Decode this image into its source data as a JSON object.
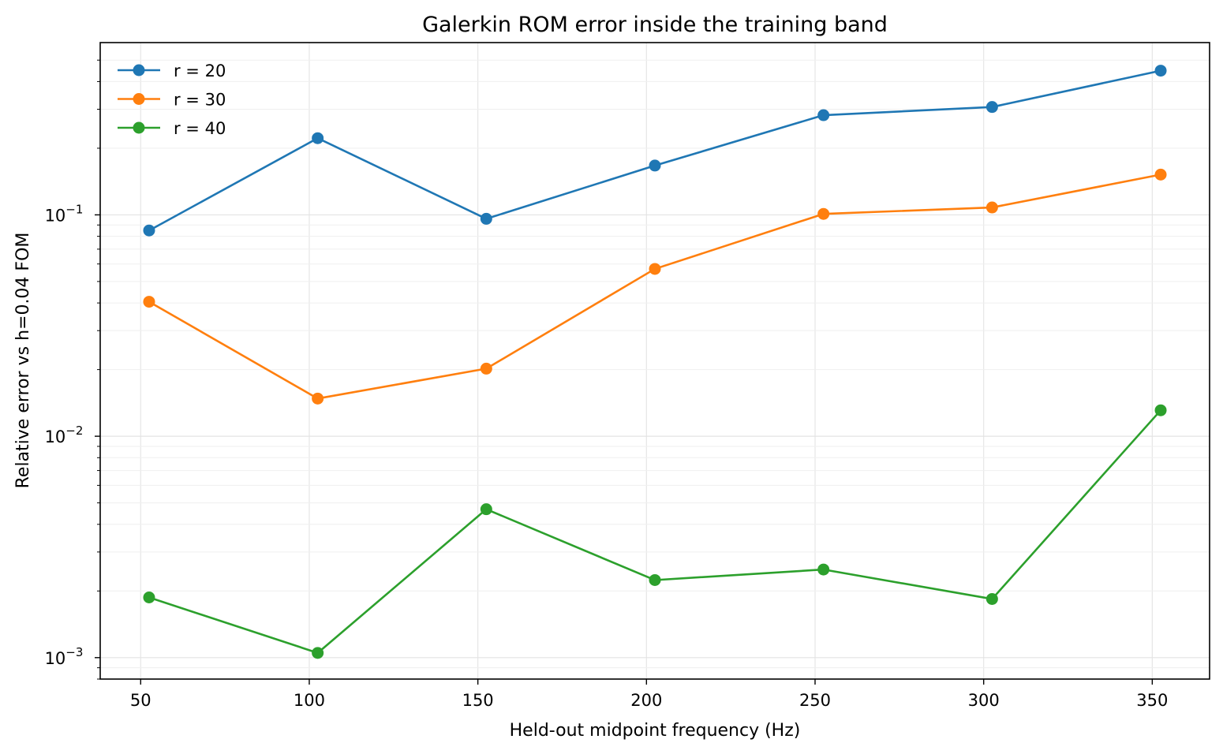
{
  "chart_data": {
    "type": "line",
    "title": "Galerkin ROM error inside the training band",
    "xlabel": "Held-out midpoint frequency (Hz)",
    "ylabel": "Relative error vs h=0.04 FOM",
    "x": [
      52.5,
      102.5,
      152.5,
      202.5,
      252.5,
      302.5,
      352.5
    ],
    "xlim": [
      38,
      367
    ],
    "ylim": [
      0.0008,
      0.6
    ],
    "yscale": "log",
    "x_ticks": [
      50,
      100,
      150,
      200,
      250,
      300,
      350
    ],
    "x_tick_labels": [
      "50",
      "100",
      "150",
      "200",
      "250",
      "300",
      "350"
    ],
    "y_ticks": [
      {
        "value": 0.1,
        "base": "10",
        "exp": "−1"
      },
      {
        "value": 0.01,
        "base": "10",
        "exp": "−2"
      },
      {
        "value": 0.001,
        "base": "10",
        "exp": "−3"
      }
    ],
    "grid": true,
    "legend_position": "top-left",
    "series": [
      {
        "name": "r = 20",
        "color": "#1f77b4",
        "values": [
          0.085,
          0.222,
          0.096,
          0.167,
          0.282,
          0.307,
          0.448
        ]
      },
      {
        "name": "r = 30",
        "color": "#ff7f0e",
        "values": [
          0.0405,
          0.0148,
          0.0202,
          0.057,
          0.101,
          0.108,
          0.152
        ]
      },
      {
        "name": "r = 40",
        "color": "#2ca02c",
        "values": [
          0.00187,
          0.00105,
          0.00468,
          0.00224,
          0.0025,
          0.00184,
          0.0131
        ]
      }
    ]
  }
}
